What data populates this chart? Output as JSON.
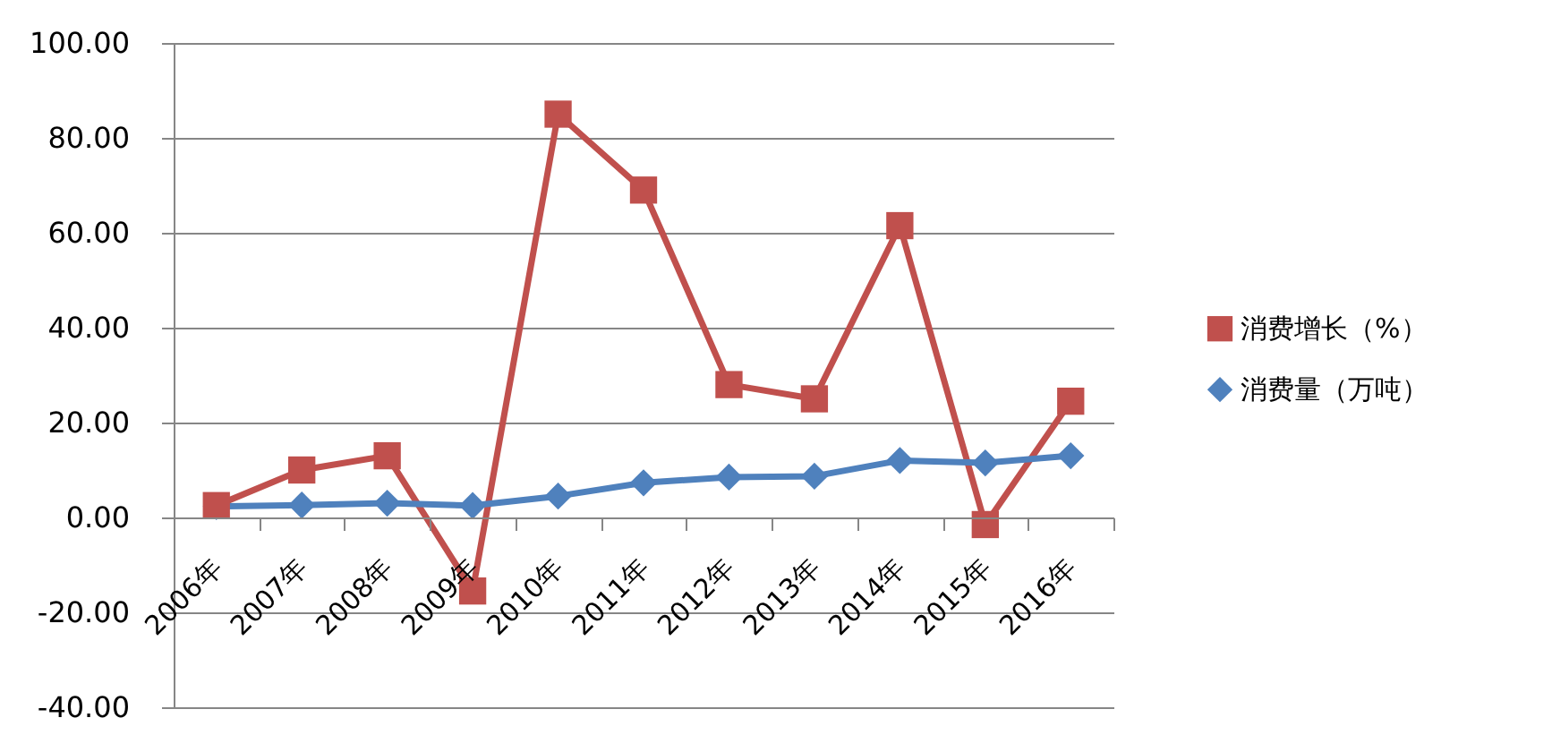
{
  "chart_data": {
    "type": "line",
    "categories": [
      "2006年",
      "2007年",
      "2008年",
      "2009年",
      "2010年",
      "2011年",
      "2012年",
      "2013年",
      "2014年",
      "2015年",
      "2016年"
    ],
    "series": [
      {
        "name": "消费增长（%）",
        "color": "#c0504d",
        "marker": "square",
        "values": [
          2.5,
          10,
          13,
          -15.5,
          85,
          69,
          28,
          25,
          61.5,
          -1.5,
          24.5
        ]
      },
      {
        "name": "消费量（万吨）",
        "color": "#4f81bd",
        "marker": "diamond",
        "values": [
          2.3,
          2.6,
          3,
          2.5,
          4.5,
          7.3,
          8.5,
          8.7,
          12,
          11.5,
          13
        ]
      }
    ],
    "ylim": [
      -40,
      100
    ],
    "yticks": [
      {
        "value": -40,
        "label": "-40.00"
      },
      {
        "value": -20,
        "label": "-20.00"
      },
      {
        "value": 0,
        "label": "0.00"
      },
      {
        "value": 20,
        "label": "20.00"
      },
      {
        "value": 40,
        "label": "40.00"
      },
      {
        "value": 60,
        "label": "60.00"
      },
      {
        "value": 80,
        "label": "80.00"
      },
      {
        "value": 100,
        "label": "100.00"
      }
    ],
    "grid": "y",
    "legend": "right"
  }
}
